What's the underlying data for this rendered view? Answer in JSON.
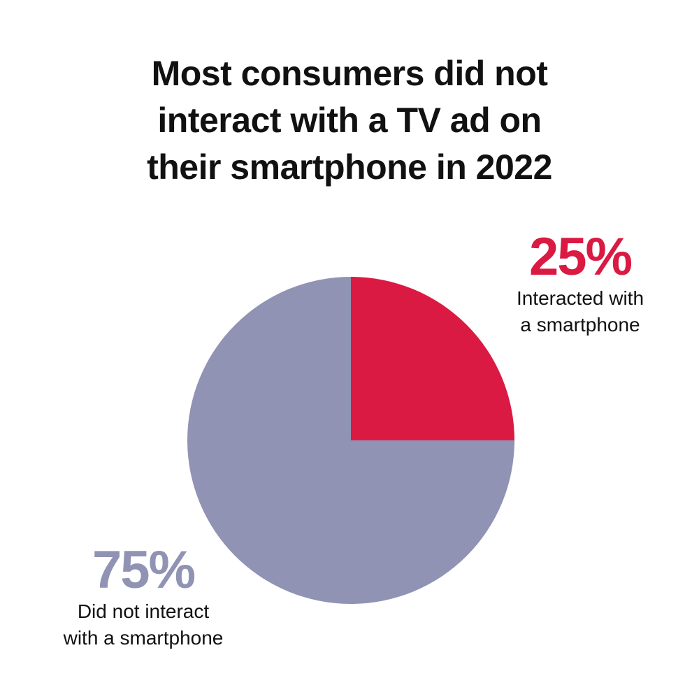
{
  "title_lines": [
    "Most consumers did not",
    "interact with a TV ad on",
    "their smartphone in 2022"
  ],
  "chart_data": {
    "type": "pie",
    "title": "Most consumers did not interact with a TV ad on their smartphone in 2022",
    "slices": [
      {
        "value": 25,
        "value_label": "25%",
        "label_lines": [
          "Interacted with",
          "a smartphone"
        ],
        "color": "#DA1A43"
      },
      {
        "value": 75,
        "value_label": "75%",
        "label_lines": [
          "Did not interact",
          "with a smartphone"
        ],
        "color": "#9093B3"
      }
    ]
  }
}
